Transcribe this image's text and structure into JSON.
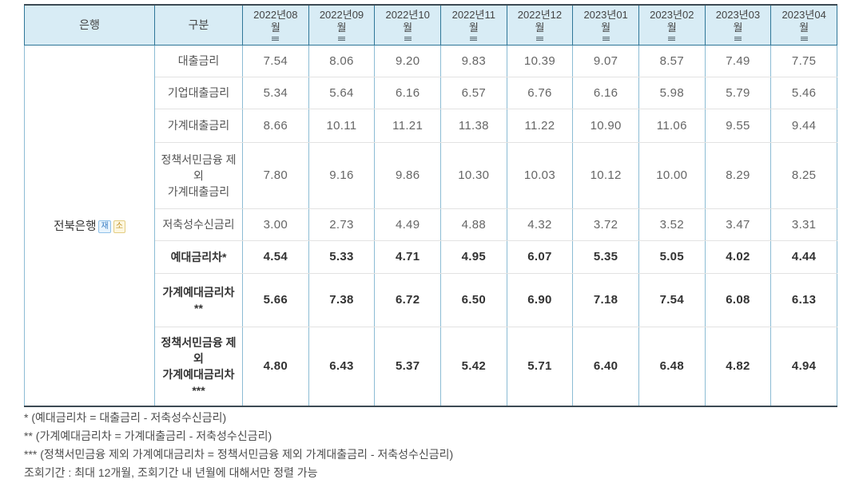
{
  "table": {
    "corner_headers": [
      "은행",
      "구분"
    ],
    "month_headers": [
      "2022년08월",
      "2022년09월",
      "2022년10월",
      "2022년11월",
      "2022년12월",
      "2023년01월",
      "2023년02월",
      "2023년03월",
      "2023년04월"
    ],
    "bank": {
      "name": "전북은행",
      "badges": [
        {
          "label": "재",
          "color": "#3b7fc4",
          "bg": "#e8f4fd",
          "border": "#8fc1e8"
        },
        {
          "label": "소",
          "color": "#c09125",
          "bg": "#fdf7e0",
          "border": "#e3cd82"
        }
      ]
    },
    "rows": [
      {
        "label": "대출금리",
        "bold": false,
        "height": "h40",
        "values": [
          "7.54",
          "8.06",
          "9.20",
          "9.83",
          "10.39",
          "9.07",
          "8.57",
          "7.49",
          "7.75"
        ]
      },
      {
        "label": "기업대출금리",
        "bold": false,
        "height": "h40",
        "values": [
          "5.34",
          "5.64",
          "6.16",
          "6.57",
          "6.76",
          "6.16",
          "5.98",
          "5.79",
          "5.46"
        ]
      },
      {
        "label": "가계대출금리",
        "bold": false,
        "height": "h42",
        "values": [
          "8.66",
          "10.11",
          "11.21",
          "11.38",
          "11.22",
          "10.90",
          "11.06",
          "9.55",
          "9.44"
        ]
      },
      {
        "label": "정책서민금융 제외\n가계대출금리",
        "bold": false,
        "height": "h83",
        "values": [
          "7.80",
          "9.16",
          "9.86",
          "10.30",
          "10.03",
          "10.12",
          "10.00",
          "8.29",
          "8.25"
        ]
      },
      {
        "label": "저축성수신금리",
        "bold": false,
        "height": "h40",
        "values": [
          "3.00",
          "2.73",
          "4.49",
          "4.88",
          "4.32",
          "3.72",
          "3.52",
          "3.47",
          "3.31"
        ]
      },
      {
        "label": "예대금리차*",
        "bold": true,
        "height": "h41",
        "values": [
          "4.54",
          "5.33",
          "4.71",
          "4.95",
          "6.07",
          "5.35",
          "5.05",
          "4.02",
          "4.44"
        ]
      },
      {
        "label": "가계예대금리차\n**",
        "bold": true,
        "height": "h67",
        "values": [
          "5.66",
          "7.38",
          "6.72",
          "6.50",
          "6.90",
          "7.18",
          "7.54",
          "6.08",
          "6.13"
        ]
      },
      {
        "label": "정책서민금융 제외\n가계예대금리차\n***",
        "bold": true,
        "height": "h100",
        "values": [
          "4.80",
          "6.43",
          "5.37",
          "5.42",
          "5.71",
          "6.40",
          "6.48",
          "4.82",
          "4.94"
        ]
      }
    ],
    "footnotes": [
      "* (예대금리차 = 대출금리 - 저축성수신금리)",
      "** (가계예대금리차 = 가계대출금리 - 저축성수신금리)",
      "*** (정책서민금융 제외 가계예대금리차 = 정책서민금융 제외 가계대출금리 - 저축성수신금리)",
      "조회기간 : 최대 12개월, 조회기간 내 년월에 대해서만 정렬 가능"
    ],
    "colors": {
      "header_bg": "#d8ecf5",
      "header_border": "#2f7698",
      "body_vertical_border": "#8cbcd4",
      "body_horizontal_border": "#e2e2e2",
      "outer_border": "#3d4b54"
    }
  }
}
